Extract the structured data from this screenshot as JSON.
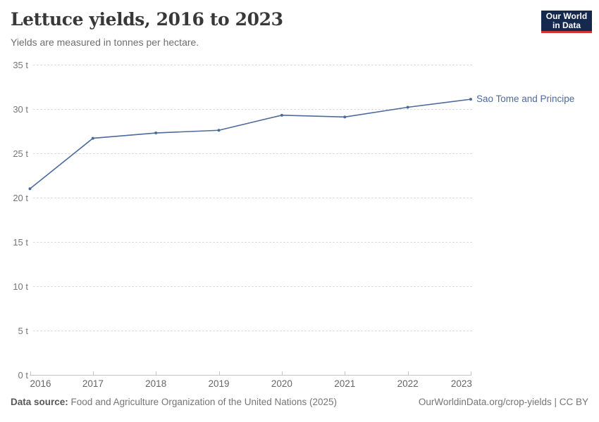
{
  "header": {
    "title": "Lettuce yields, 2016 to 2023",
    "subtitle": "Yields are measured in tonnes per hectare.",
    "logo": {
      "line1": "Our World",
      "line2": "in Data",
      "background_color": "#15294e",
      "accent_color": "#d5342d"
    }
  },
  "chart_data": {
    "type": "line",
    "title": "Lettuce yields, 2016 to 2023",
    "subtitle": "Yields are measured in tonnes per hectare.",
    "unit": "tonnes per hectare",
    "x": [
      2016,
      2017,
      2018,
      2019,
      2020,
      2021,
      2022,
      2023
    ],
    "series": [
      {
        "name": "Sao Tome and Principe",
        "color": "#4C6A9C",
        "values": [
          21.0,
          26.7,
          27.3,
          27.6,
          29.3,
          29.1,
          30.2,
          31.1
        ]
      }
    ],
    "ylim": [
      0,
      35
    ],
    "yticks": [
      0,
      5,
      10,
      15,
      20,
      25,
      30,
      35
    ],
    "ytick_format": "{v} t",
    "grid": "horizontal dashed",
    "legend_position": "end-of-line label"
  },
  "footer": {
    "source_label": "Data source:",
    "source_value": "Food and Agriculture Organization of the United Nations (2025)",
    "link": "OurWorldinData.org/crop-yields | CC BY"
  }
}
